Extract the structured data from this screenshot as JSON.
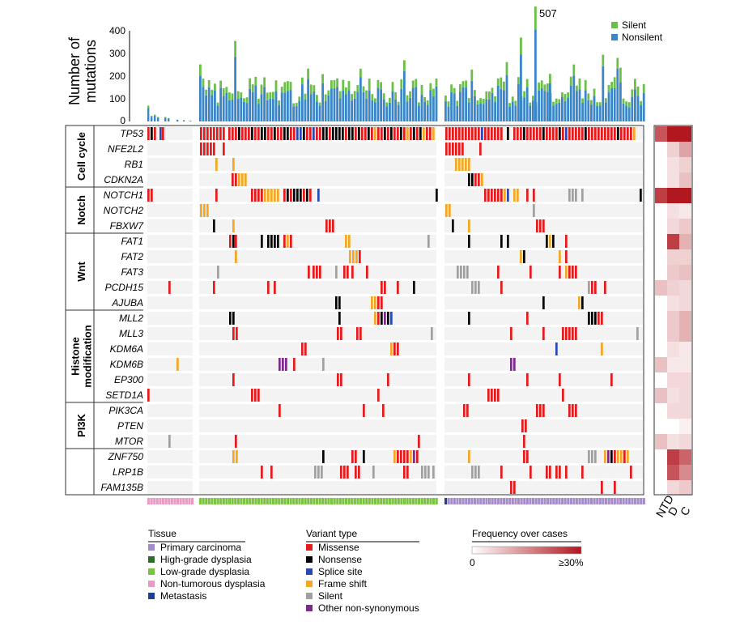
{
  "chart_data": {
    "type": "oncoprint",
    "bar_chart": {
      "ylabel": [
        "Number of",
        "mutations"
      ],
      "yticks": [
        0,
        100,
        200,
        300,
        400
      ],
      "ylim": [
        0,
        420
      ],
      "peak_annotation": "507",
      "series": [
        {
          "name": "Silent",
          "color": "#6cc04a"
        },
        {
          "name": "Nonsilent",
          "color": "#3a86c8"
        }
      ]
    },
    "genes": [
      "TP53",
      "NFE2L2",
      "RB1",
      "CDKN2A",
      "NOTCH1",
      "NOTCH2",
      "FBXW7",
      "FAT1",
      "FAT2",
      "FAT3",
      "PCDH15",
      "AJUBA",
      "MLL2",
      "MLL3",
      "KDM6A",
      "KDM6B",
      "EP300",
      "SETD1A",
      "PIK3CA",
      "PTEN",
      "MTOR",
      "ZNF750",
      "LRP1B",
      "FAM135B"
    ],
    "pathway_groups": [
      {
        "name": "Cell cycle",
        "lines": [
          "Cell cycle"
        ],
        "start": 0,
        "end": 3
      },
      {
        "name": "Notch",
        "lines": [
          "Notch"
        ],
        "start": 4,
        "end": 6
      },
      {
        "name": "Wnt",
        "lines": [
          "Wnt"
        ],
        "start": 7,
        "end": 11
      },
      {
        "name": "Histone modification",
        "lines": [
          "Histone",
          "modification"
        ],
        "start": 12,
        "end": 17
      },
      {
        "name": "PI3K",
        "lines": [
          "PI3K"
        ],
        "start": 18,
        "end": 20
      },
      {
        "name": "",
        "lines": [],
        "start": 21,
        "end": 23
      }
    ],
    "heatmap": {
      "columns": [
        "NTD",
        "D",
        "C"
      ],
      "values": [
        [
          0.22,
          0.6,
          0.75
        ],
        [
          0.0,
          0.06,
          0.12
        ],
        [
          0.0,
          0.04,
          0.06
        ],
        [
          0.0,
          0.04,
          0.08
        ],
        [
          0.25,
          0.3,
          0.32
        ],
        [
          0.0,
          0.04,
          0.03
        ],
        [
          0.0,
          0.05,
          0.07
        ],
        [
          0.0,
          0.25,
          0.1
        ],
        [
          0.0,
          0.06,
          0.06
        ],
        [
          0.0,
          0.07,
          0.08
        ],
        [
          0.08,
          0.06,
          0.05
        ],
        [
          0.0,
          0.04,
          0.05
        ],
        [
          0.0,
          0.07,
          0.1
        ],
        [
          0.0,
          0.07,
          0.1
        ],
        [
          0.0,
          0.04,
          0.03
        ],
        [
          0.08,
          0.03,
          0.03
        ],
        [
          0.0,
          0.05,
          0.05
        ],
        [
          0.08,
          0.04,
          0.05
        ],
        [
          0.0,
          0.05,
          0.05
        ],
        [
          0.0,
          0.0,
          0.02
        ],
        [
          0.08,
          0.04,
          0.05
        ],
        [
          0.0,
          0.25,
          0.2
        ],
        [
          0.0,
          0.22,
          0.15
        ],
        [
          0.0,
          0.05,
          0.07
        ]
      ]
    },
    "legend_tissue": {
      "title": "Tissue",
      "items": [
        {
          "label": "Primary carcinoma",
          "color": "#a68bc9"
        },
        {
          "label": "High-grade dysplasia",
          "color": "#2f6b2a"
        },
        {
          "label": "Low-grade dysplasia",
          "color": "#7cc242"
        },
        {
          "label": "Non-tumorous dysplasia",
          "color": "#e99ac3"
        },
        {
          "label": "Metastasis",
          "color": "#1f3f8f"
        }
      ]
    },
    "legend_variant": {
      "title": "Variant type",
      "items": [
        {
          "label": "Missense",
          "color": "#e41a1c"
        },
        {
          "label": "Nonsense",
          "color": "#000000"
        },
        {
          "label": "Splice site",
          "color": "#2648b8"
        },
        {
          "label": "Frame shift",
          "color": "#f5a623"
        },
        {
          "label": "Silent",
          "color": "#a0a0a0"
        },
        {
          "label": "Other non-synonymous",
          "color": "#7b2a8e"
        }
      ]
    },
    "legend_frequency": {
      "title": "Frequency over cases",
      "min_label": "0",
      "max_label": "≥30%",
      "color_low": "#ffffff",
      "color_high": "#b0171f"
    }
  }
}
